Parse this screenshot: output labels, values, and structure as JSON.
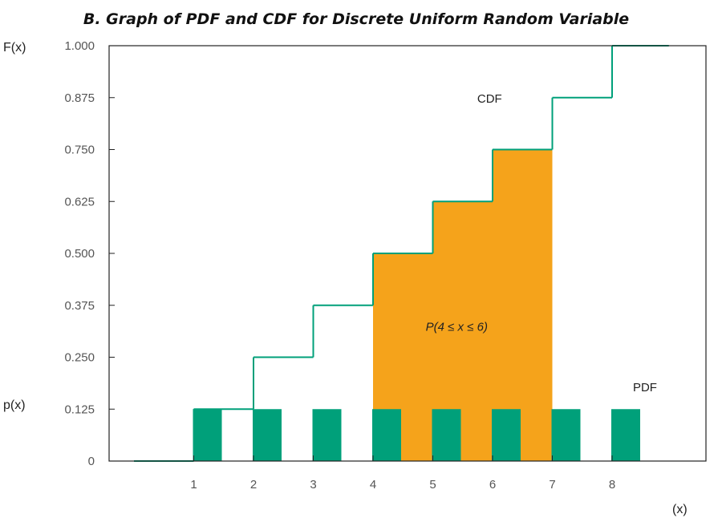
{
  "chart_data": {
    "type": "bar",
    "title": "B. Graph of PDF and CDF for Discrete Uniform Random Variable",
    "ylabel_top": "F(x)",
    "ylabel_bottom": "p(x)",
    "xlabel": "(x)",
    "x_ticks": [
      "1",
      "2",
      "3",
      "4",
      "5",
      "6",
      "7",
      "8"
    ],
    "y_ticks": [
      "0",
      "0.125",
      "0.250",
      "0.375",
      "0.500",
      "0.625",
      "0.750",
      "0.875",
      "1.000"
    ],
    "ylim": [
      0,
      1
    ],
    "xlim": [
      0,
      9
    ],
    "series": [
      {
        "name": "PDF",
        "type": "bar",
        "x": [
          1,
          2,
          3,
          4,
          5,
          6,
          7,
          8
        ],
        "values": [
          0.125,
          0.125,
          0.125,
          0.125,
          0.125,
          0.125,
          0.125,
          0.125
        ]
      },
      {
        "name": "CDF",
        "type": "step",
        "x": [
          0,
          1,
          2,
          3,
          4,
          5,
          6,
          7,
          8
        ],
        "values": [
          0,
          0.125,
          0.25,
          0.375,
          0.5,
          0.625,
          0.75,
          0.875,
          1.0
        ]
      }
    ],
    "shaded_region": {
      "label": "P(4 ≤ x ≤ 6)",
      "x_from": 4,
      "x_to": 6
    },
    "colors": {
      "pdf": "#00a07a",
      "cdf": "#00a07a",
      "shade": "#f5a31b"
    },
    "grid": false
  }
}
